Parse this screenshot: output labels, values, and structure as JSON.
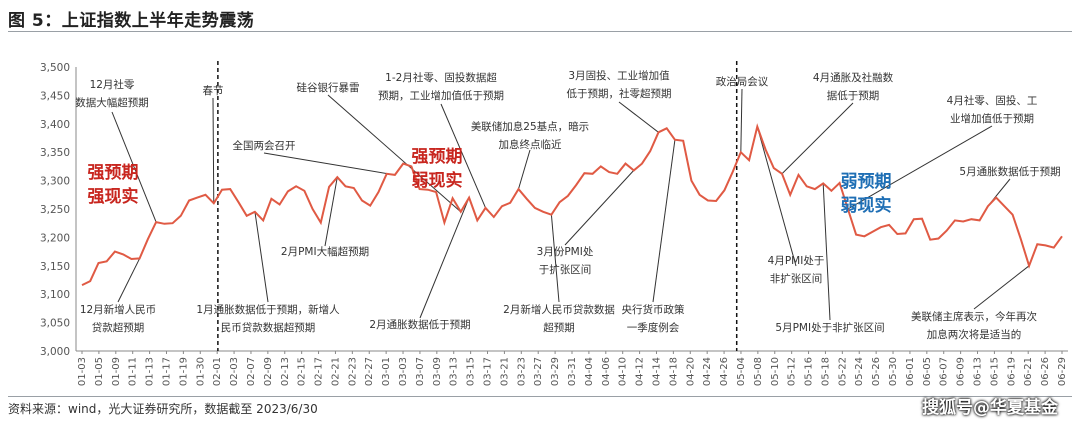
{
  "title": "图 5：上证指数上半年走势震荡",
  "source": "资料来源：wind，光大证券研究所，数据截至 2023/6/30",
  "watermark": "搜狐号@华夏基金",
  "colors": {
    "line": "#e05a44",
    "strong": "#c8261f",
    "weak": "#1f6fb5",
    "pointer": "#333333",
    "axis": "#888888"
  },
  "chart_data": {
    "type": "line",
    "title": "图 5：上证指数上半年走势震荡",
    "xlabel": "",
    "ylabel": "",
    "ylim": [
      3000,
      3500
    ],
    "yticks": [
      3000,
      3050,
      3100,
      3150,
      3200,
      3250,
      3300,
      3350,
      3400,
      3450,
      3500
    ],
    "ytick_labels": [
      "3,000",
      "3,050",
      "3,100",
      "3,150",
      "3,200",
      "3,250",
      "3,300",
      "3,350",
      "3,400",
      "3,450",
      "3,500"
    ],
    "xtick_labels": [
      "01-03",
      "01-05",
      "01-09",
      "01-11",
      "01-13",
      "01-17",
      "01-19",
      "01-30",
      "02-01",
      "02-03",
      "02-07",
      "02-09",
      "02-13",
      "02-15",
      "02-17",
      "02-21",
      "02-23",
      "02-27",
      "03-01",
      "03-03",
      "03-07",
      "03-09",
      "03-13",
      "03-15",
      "03-17",
      "03-21",
      "03-23",
      "03-27",
      "03-29",
      "03-31",
      "04-04",
      "04-06",
      "04-10",
      "04-12",
      "04-14",
      "04-18",
      "04-20",
      "04-24",
      "04-26",
      "05-04",
      "05-08",
      "05-10",
      "05-12",
      "05-16",
      "05-18",
      "05-22",
      "05-24",
      "05-26",
      "05-30",
      "06-01",
      "06-05",
      "06-07",
      "06-09",
      "06-13",
      "06-15",
      "06-19",
      "06-21",
      "06-26",
      "06-29"
    ],
    "grid": false,
    "series": [
      {
        "name": "",
        "values": [
          3116,
          3123,
          3155,
          3158,
          3175,
          3170,
          3162,
          3163,
          3197,
          3227,
          3224,
          3225,
          3238,
          3265,
          3270,
          3275,
          3260,
          3284,
          3285,
          3262,
          3238,
          3245,
          3230,
          3268,
          3258,
          3281,
          3290,
          3282,
          3250,
          3226,
          3289,
          3306,
          3290,
          3287,
          3265,
          3256,
          3280,
          3312,
          3310,
          3330,
          3325,
          3285,
          3284,
          3280,
          3226,
          3269,
          3245,
          3270,
          3230,
          3252,
          3236,
          3255,
          3261,
          3285,
          3268,
          3252,
          3245,
          3240,
          3262,
          3273,
          3292,
          3313,
          3312,
          3325,
          3315,
          3312,
          3330,
          3318,
          3330,
          3352,
          3385,
          3392,
          3372,
          3370,
          3300,
          3275,
          3265,
          3264,
          3283,
          3315,
          3350,
          3336,
          3395,
          3355,
          3322,
          3312,
          3275,
          3310,
          3290,
          3285,
          3295,
          3282,
          3296,
          3250,
          3205,
          3202,
          3210,
          3218,
          3222,
          3206,
          3207,
          3232,
          3233,
          3196,
          3198,
          3212,
          3230,
          3228,
          3232,
          3230,
          3255,
          3270,
          3255,
          3240,
          3197,
          3150,
          3188,
          3186,
          3182,
          3202
        ]
      }
    ],
    "dividers_after_index": [
      16,
      79
    ],
    "annotations": [
      "12月社零数据大幅超预期",
      "12月新增人民币贷款超预期",
      "春节",
      "1月通胀数据低于预期，新增人民币贷款数据超预期",
      "全国两会召开",
      "2月PMI大幅超预期",
      "硅谷银行暴雷",
      "2月通胀数据低于预期",
      "1-2月社零、固投数据超预期，工业增加值低于预期",
      "美联储加息25基点，暗示加息终点临近",
      "2月新增人民币贷款数据超预期",
      "3月份PMI处于扩张区间",
      "3月固投、工业增加值低于预期，社零超预期",
      "央行货币政策一季度例会",
      "政治局会议",
      "4月PMI处于非扩张区间",
      "4月通胀及社融数据低于预期",
      "5月PMI处于非扩张区间",
      "4月社零、固投、工业增加值低于预期",
      "5月通胀数据低于预期",
      "美联储主席表示，今年再次加息两次将是适当的"
    ],
    "phase_labels": [
      {
        "line1": "强预期",
        "line2": "强现实",
        "color": "strong"
      },
      {
        "line1": "强预期",
        "line2": "弱现实",
        "color": "strong"
      },
      {
        "line1": "弱预期",
        "line2": "弱现实",
        "color": "weak"
      }
    ]
  }
}
